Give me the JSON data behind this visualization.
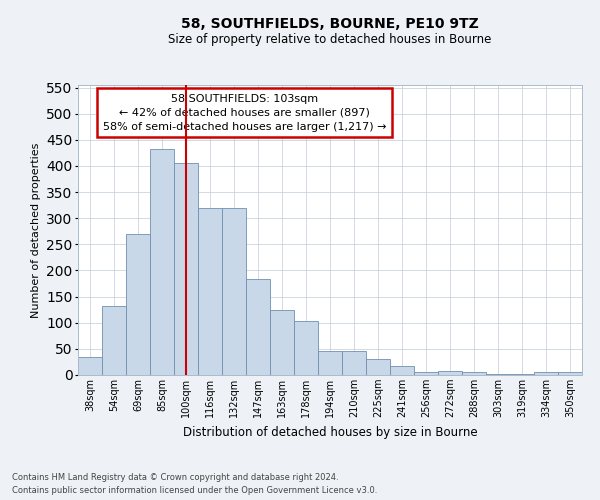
{
  "title1": "58, SOUTHFIELDS, BOURNE, PE10 9TZ",
  "title2": "Size of property relative to detached houses in Bourne",
  "xlabel": "Distribution of detached houses by size in Bourne",
  "ylabel": "Number of detached properties",
  "categories": [
    "38sqm",
    "54sqm",
    "69sqm",
    "85sqm",
    "100sqm",
    "116sqm",
    "132sqm",
    "147sqm",
    "163sqm",
    "178sqm",
    "194sqm",
    "210sqm",
    "225sqm",
    "241sqm",
    "256sqm",
    "272sqm",
    "288sqm",
    "303sqm",
    "319sqm",
    "334sqm",
    "350sqm"
  ],
  "values": [
    35,
    132,
    270,
    433,
    405,
    320,
    320,
    183,
    125,
    103,
    45,
    45,
    30,
    17,
    5,
    8,
    5,
    2,
    2,
    5,
    5
  ],
  "bar_color": "#c8d8e8",
  "bar_edge_color": "#7090b0",
  "red_line_x": 4,
  "annotation_line1": "58 SOUTHFIELDS: 103sqm",
  "annotation_line2": "← 42% of detached houses are smaller (897)",
  "annotation_line3": "58% of semi-detached houses are larger (1,217) →",
  "annotation_box_color": "#ffffff",
  "annotation_box_edge": "#cc0000",
  "red_line_color": "#cc0000",
  "ylim": [
    0,
    555
  ],
  "yticks": [
    0,
    50,
    100,
    150,
    200,
    250,
    300,
    350,
    400,
    450,
    500,
    550
  ],
  "footer_line1": "Contains HM Land Registry data © Crown copyright and database right 2024.",
  "footer_line2": "Contains public sector information licensed under the Open Government Licence v3.0.",
  "bg_color": "#eef2f6",
  "plot_bg_color": "#ffffff",
  "grid_color": "#c0ccd8"
}
